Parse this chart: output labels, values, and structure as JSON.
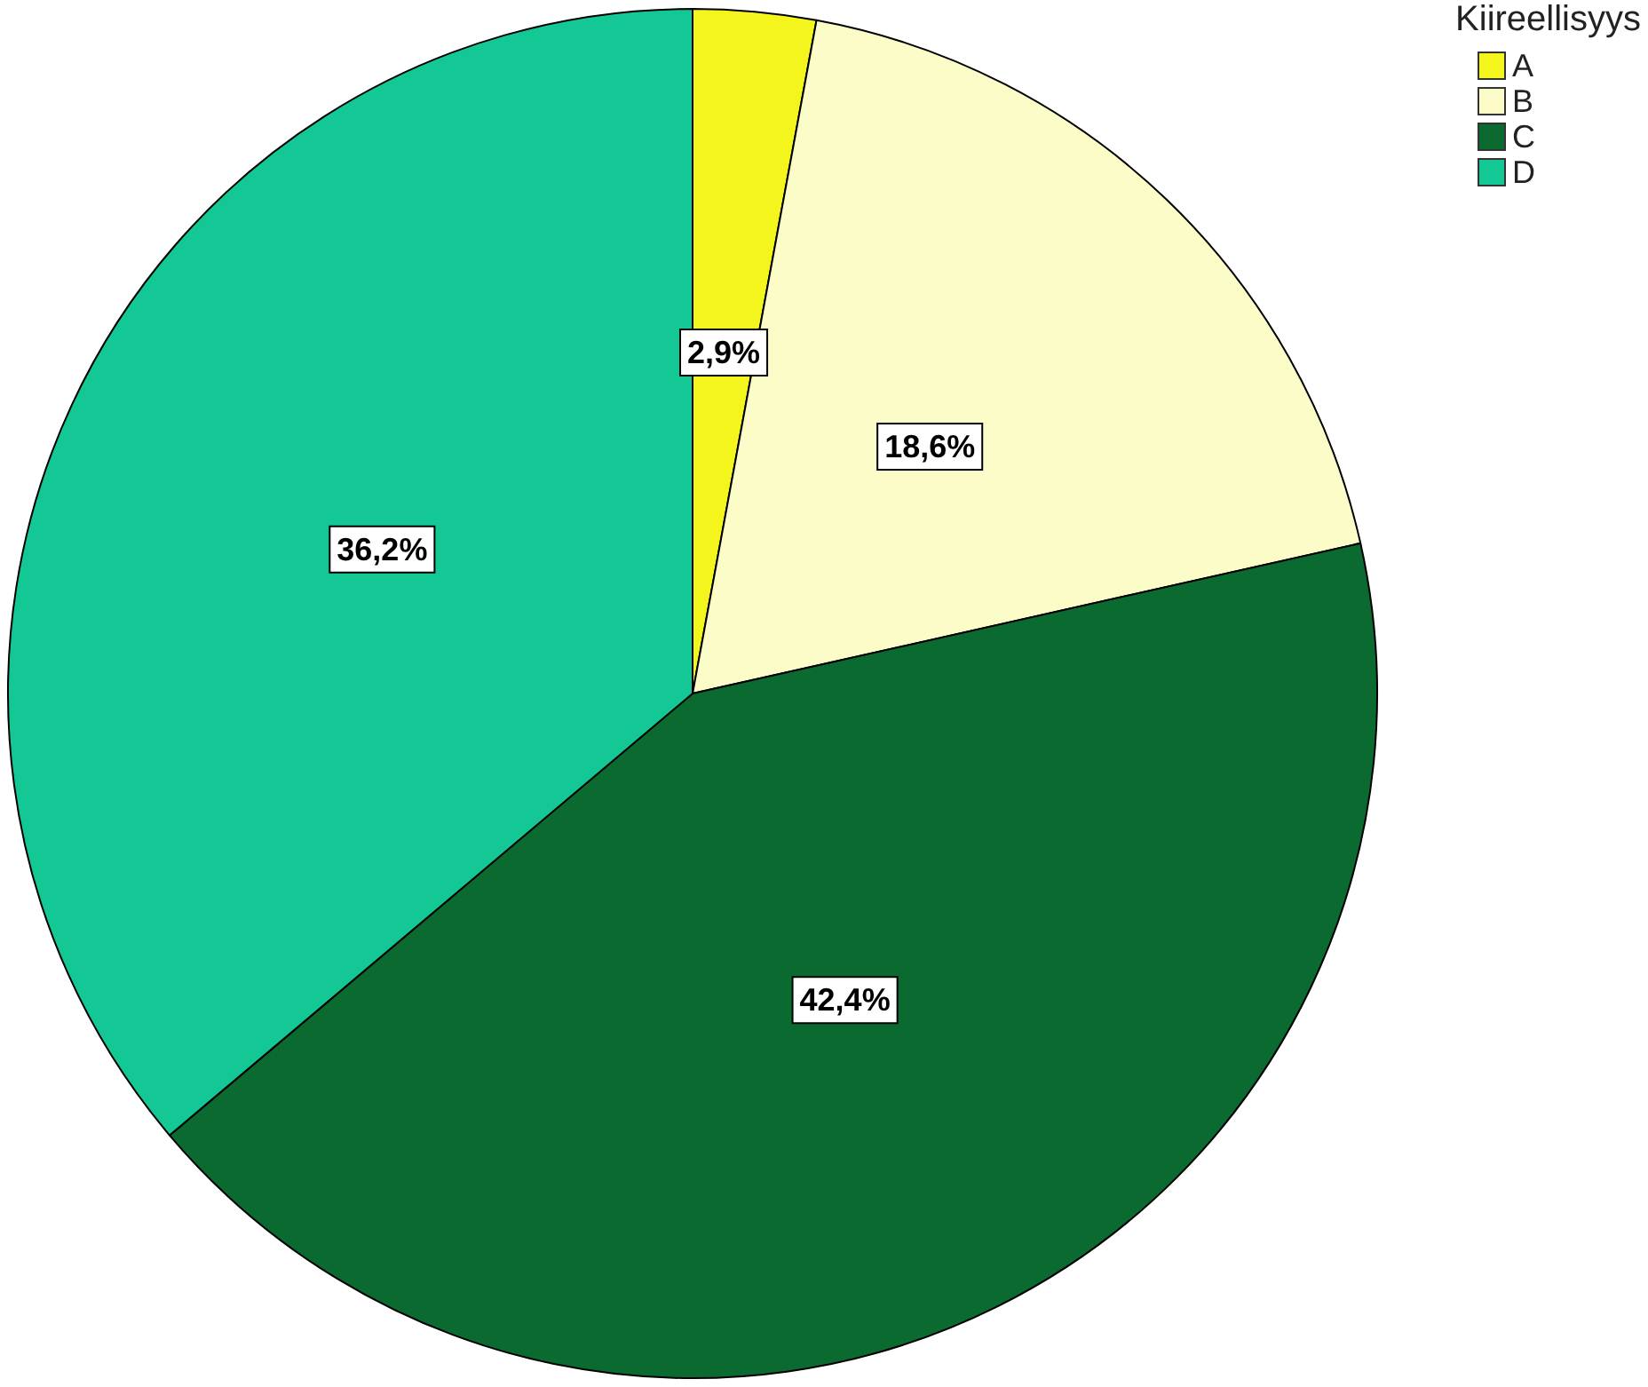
{
  "chart_data": {
    "type": "pie",
    "legend_title": "Kiireellisyys",
    "legend": "top right",
    "categories": [
      "A",
      "B",
      "C",
      "D"
    ],
    "values": [
      2.9,
      18.6,
      42.4,
      36.2
    ],
    "colors": [
      "#f5f51e",
      "#fcfcc8",
      "#0b6a2f",
      "#14c896"
    ],
    "value_labels": [
      "2,9%",
      "18,6%",
      "42,4%",
      "36,2%"
    ]
  }
}
